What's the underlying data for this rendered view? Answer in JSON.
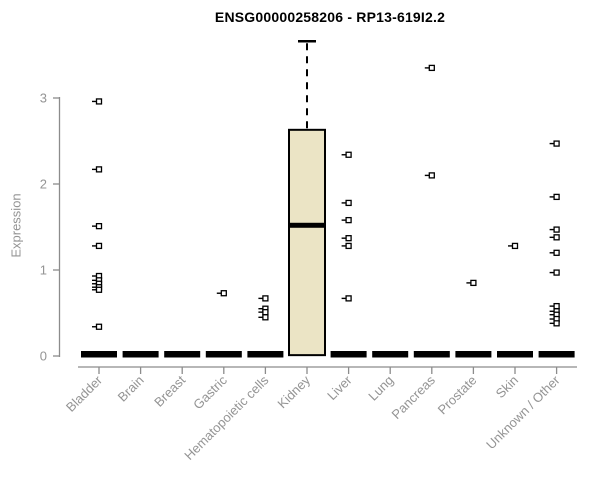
{
  "chart_data": {
    "type": "boxplot",
    "title": "ENSG00000258206 - RP13-619I2.2",
    "xlabel": "",
    "ylabel": "Expression",
    "ylim": [
      0,
      3.75
    ],
    "yticks": [
      0,
      1,
      2,
      3
    ],
    "grid": false,
    "legend": "none",
    "colors": {
      "box_fill": "#EBE4C5",
      "box_border": "#000000",
      "median": "#000000",
      "outlier": "#000000",
      "axis": "#8c8c8c",
      "tick_label": "#949494",
      "title": "#000000",
      "background": "#ffffff"
    },
    "categories": [
      "Bladder",
      "Brain",
      "Breast",
      "Gastric",
      "Hematopoietic cells",
      "Kidney",
      "Liver",
      "Lung",
      "Pancreas",
      "Prostate",
      "Skin",
      "Unknown / Other"
    ],
    "series": [
      {
        "category": "Bladder",
        "collapsed": true,
        "box": {
          "q1": 0,
          "median": 0,
          "q3": 0.03,
          "whisker_low": 0,
          "whisker_high": 0.03
        },
        "outliers": [
          2.96,
          2.17,
          1.51,
          1.28,
          0.93,
          0.88,
          0.84,
          0.8,
          0.77,
          0.34
        ]
      },
      {
        "category": "Brain",
        "collapsed": true,
        "box": {
          "q1": 0,
          "median": 0,
          "q3": 0.03,
          "whisker_low": 0,
          "whisker_high": 0.03
        },
        "outliers": []
      },
      {
        "category": "Breast",
        "collapsed": true,
        "box": {
          "q1": 0,
          "median": 0,
          "q3": 0.03,
          "whisker_low": 0,
          "whisker_high": 0.03
        },
        "outliers": []
      },
      {
        "category": "Gastric",
        "collapsed": true,
        "box": {
          "q1": 0,
          "median": 0,
          "q3": 0.03,
          "whisker_low": 0,
          "whisker_high": 0.03
        },
        "outliers": [
          0.73
        ]
      },
      {
        "category": "Hematopoietic cells",
        "collapsed": true,
        "box": {
          "q1": 0,
          "median": 0,
          "q3": 0.03,
          "whisker_low": 0,
          "whisker_high": 0.03
        },
        "outliers": [
          0.67,
          0.55,
          0.51,
          0.45
        ]
      },
      {
        "category": "Kidney",
        "collapsed": false,
        "box": {
          "q1": 0.01,
          "median": 1.52,
          "q3": 2.63,
          "whisker_low": 0.01,
          "whisker_high": 3.66
        },
        "outliers": []
      },
      {
        "category": "Liver",
        "collapsed": true,
        "box": {
          "q1": 0,
          "median": 0,
          "q3": 0.03,
          "whisker_low": 0,
          "whisker_high": 0.03
        },
        "outliers": [
          2.34,
          1.78,
          1.58,
          1.37,
          1.28,
          0.67
        ]
      },
      {
        "category": "Lung",
        "collapsed": true,
        "box": {
          "q1": 0,
          "median": 0,
          "q3": 0.03,
          "whisker_low": 0,
          "whisker_high": 0.03
        },
        "outliers": []
      },
      {
        "category": "Pancreas",
        "collapsed": true,
        "box": {
          "q1": 0,
          "median": 0,
          "q3": 0.03,
          "whisker_low": 0,
          "whisker_high": 0.03
        },
        "outliers": [
          3.35,
          2.1
        ]
      },
      {
        "category": "Prostate",
        "collapsed": true,
        "box": {
          "q1": 0,
          "median": 0,
          "q3": 0.03,
          "whisker_low": 0,
          "whisker_high": 0.03
        },
        "outliers": [
          0.85
        ]
      },
      {
        "category": "Skin",
        "collapsed": true,
        "box": {
          "q1": 0,
          "median": 0,
          "q3": 0.03,
          "whisker_low": 0,
          "whisker_high": 0.03
        },
        "outliers": [
          1.28
        ]
      },
      {
        "category": "Unknown / Other",
        "collapsed": true,
        "box": {
          "q1": 0,
          "median": 0,
          "q3": 0.03,
          "whisker_low": 0,
          "whisker_high": 0.03
        },
        "outliers": [
          2.47,
          1.85,
          1.47,
          1.38,
          1.2,
          0.97,
          0.58,
          0.52,
          0.48,
          0.43,
          0.38
        ]
      }
    ]
  }
}
